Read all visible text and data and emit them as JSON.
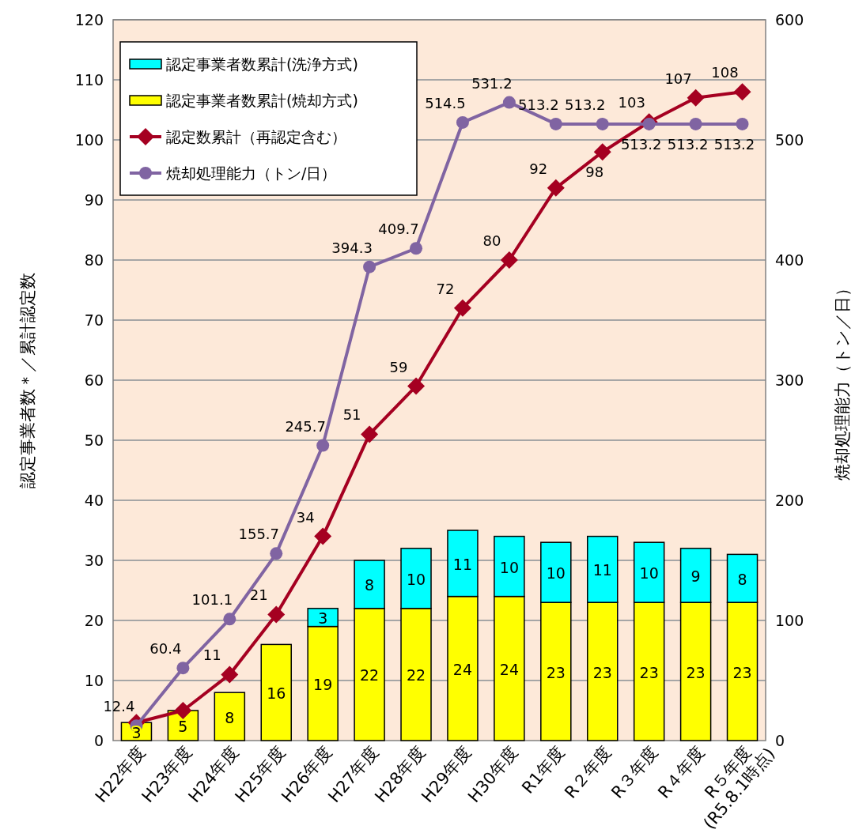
{
  "chart_data": {
    "type": "bar",
    "stacked": true,
    "legend": "top left",
    "grid": "y",
    "ylabel": "認定事業者数＊／累計認定数",
    "y2label": "焼却処理能力（トン／日）",
    "categories": [
      "H22年度",
      "H23年度",
      "H24年度",
      "H25年度",
      "H26年度",
      "H27年度",
      "H28年度",
      "H29年度",
      "H30年度",
      "R1年度",
      "R２年度",
      "R３年度",
      "R４年度",
      "R５年度\n(R5.8.1時点)"
    ],
    "ylim": [
      0,
      120
    ],
    "yticks": [
      0,
      10,
      20,
      30,
      40,
      50,
      60,
      70,
      80,
      90,
      100,
      110,
      120
    ],
    "y2lim": [
      0,
      600
    ],
    "y2ticks": [
      0,
      100,
      200,
      300,
      400,
      500,
      600
    ],
    "series": [
      {
        "name": "認定事業者数累計(焼却方式)",
        "color": "#ffff00",
        "data_labels": true,
        "values": [
          3,
          5,
          8,
          16,
          19,
          22,
          22,
          24,
          24,
          23,
          23,
          23,
          23,
          23
        ]
      },
      {
        "name": "認定事業者数累計(洗浄方式)",
        "color": "#00ffff",
        "data_labels": true,
        "values": [
          null,
          null,
          null,
          null,
          3,
          8,
          10,
          11,
          10,
          10,
          11,
          10,
          9,
          8
        ]
      },
      {
        "name": "認定数累計（再認定含む）",
        "type": "line",
        "color": "#a50021",
        "marker": "diamond",
        "values": [
          3,
          5,
          11,
          21,
          34,
          51,
          59,
          72,
          80,
          92,
          98,
          103,
          107,
          108
        ],
        "value_labels": [
          null,
          null,
          "11",
          "21",
          "34",
          "51",
          "59",
          "72",
          "80",
          "92",
          "98",
          "103",
          "107",
          "108"
        ]
      },
      {
        "name": "焼却処理能力（トン/日）",
        "type": "line",
        "axis": "y2",
        "color": "#8064a2",
        "marker": "circle",
        "data_labels": true,
        "values": [
          12.4,
          60.4,
          101.1,
          155.7,
          245.7,
          394.3,
          409.7,
          514.5,
          531.2,
          513.2,
          513.2,
          513.2,
          513.2,
          513.2
        ]
      }
    ]
  }
}
